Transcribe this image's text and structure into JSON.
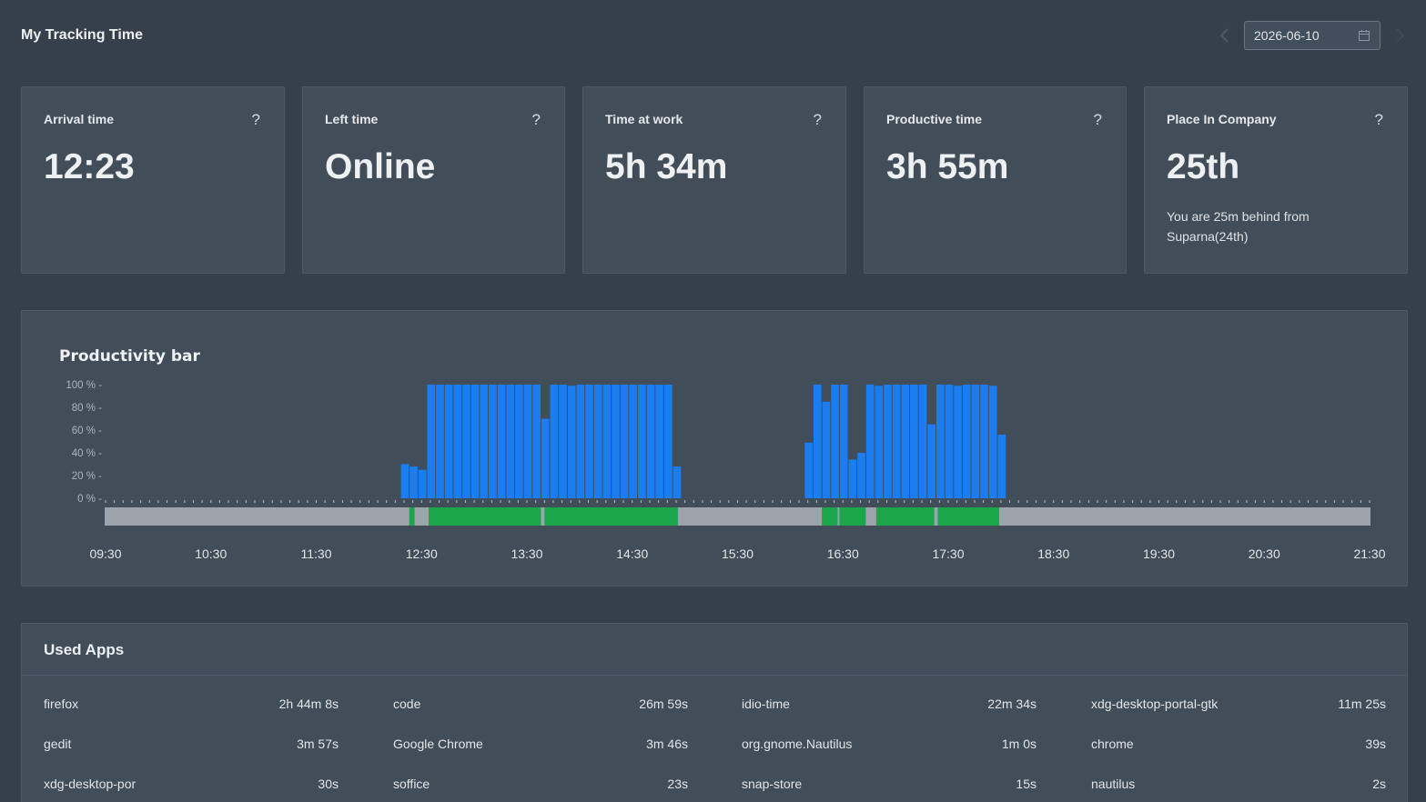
{
  "header": {
    "title": "My Tracking Time",
    "date": "2026-06-10"
  },
  "cards": [
    {
      "title": "Arrival time",
      "value": "12:23",
      "note": ""
    },
    {
      "title": "Left time",
      "value": "Online",
      "note": ""
    },
    {
      "title": "Time at work",
      "value": "5h 34m",
      "note": ""
    },
    {
      "title": "Productive time",
      "value": "3h 55m",
      "note": ""
    },
    {
      "title": "Place In Company",
      "value": "25th",
      "note": "You are 25m behind from Suparna(24th)"
    }
  ],
  "help_glyph": "?",
  "productivity": {
    "title": "Productivity bar",
    "colors": {
      "bar": "#1a7ef2",
      "productive": "#1aa64a",
      "idle": "#9da3ab"
    },
    "time_labels": [
      "09:30",
      "10:30",
      "11:30",
      "12:30",
      "13:30",
      "14:30",
      "15:30",
      "16:30",
      "17:30",
      "18:30",
      "19:30",
      "20:30",
      "21:30"
    ],
    "y_ticks": [
      "100 % -",
      "80 % -",
      "60 % -",
      "40 % -",
      "20 % -",
      "0 % -"
    ],
    "productive_segments": [
      [
        "12:23",
        "12:26"
      ],
      [
        "12:34",
        "13:38"
      ],
      [
        "13:40",
        "14:56"
      ],
      [
        "16:18",
        "16:27"
      ],
      [
        "16:28",
        "16:43"
      ],
      [
        "16:49",
        "17:22"
      ],
      [
        "17:24",
        "17:59"
      ]
    ],
    "chart_data": {
      "type": "bar",
      "xlabel": "",
      "ylabel": "",
      "ylim": [
        0,
        100
      ],
      "y_ticks": [
        0,
        20,
        40,
        60,
        80,
        100
      ],
      "bins_start": [
        "12:18",
        "12:23",
        "12:28",
        "12:33",
        "12:38",
        "12:43",
        "12:48",
        "12:53",
        "12:58",
        "13:03",
        "13:08",
        "13:13",
        "13:18",
        "13:23",
        "13:28",
        "13:33",
        "13:38",
        "13:43",
        "13:48",
        "13:53",
        "13:58",
        "14:03",
        "14:08",
        "14:13",
        "14:18",
        "14:23",
        "14:28",
        "14:33",
        "14:38",
        "14:43",
        "14:48",
        "14:53",
        "16:08",
        "16:13",
        "16:18",
        "16:23",
        "16:28",
        "16:33",
        "16:38",
        "16:43",
        "16:48",
        "16:53",
        "16:58",
        "17:03",
        "17:08",
        "17:13",
        "17:18",
        "17:23",
        "17:28",
        "17:33",
        "17:38",
        "17:43",
        "17:48",
        "17:53",
        "17:58"
      ],
      "values": [
        30,
        28,
        25,
        100,
        100,
        100,
        100,
        100,
        100,
        100,
        100,
        100,
        100,
        100,
        100,
        100,
        70,
        100,
        100,
        99,
        100,
        100,
        100,
        100,
        100,
        100,
        100,
        100,
        100,
        100,
        100,
        28,
        49,
        100,
        85,
        100,
        100,
        34,
        40,
        100,
        99,
        100,
        100,
        100,
        100,
        100,
        65,
        100,
        100,
        99,
        100,
        100,
        100,
        99,
        56
      ]
    }
  },
  "apps": {
    "title": "Used Apps",
    "items": [
      {
        "name": "firefox",
        "time": "2h 44m 8s"
      },
      {
        "name": "code",
        "time": "26m 59s"
      },
      {
        "name": "idio-time",
        "time": "22m 34s"
      },
      {
        "name": "xdg-desktop-portal-gtk",
        "time": "11m 25s"
      },
      {
        "name": "gedit",
        "time": "3m 57s"
      },
      {
        "name": "Google Chrome",
        "time": "3m 46s"
      },
      {
        "name": "org.gnome.Nautilus",
        "time": "1m 0s"
      },
      {
        "name": "chrome",
        "time": "39s"
      },
      {
        "name": "xdg-desktop-por",
        "time": "30s"
      },
      {
        "name": "soffice",
        "time": "23s"
      },
      {
        "name": "snap-store",
        "time": "15s"
      },
      {
        "name": "nautilus",
        "time": "2s"
      }
    ]
  },
  "icons": {
    "prev": "chevron-left-icon",
    "next": "chevron-right-icon",
    "calendar": "calendar-icon",
    "help": "help-icon"
  }
}
